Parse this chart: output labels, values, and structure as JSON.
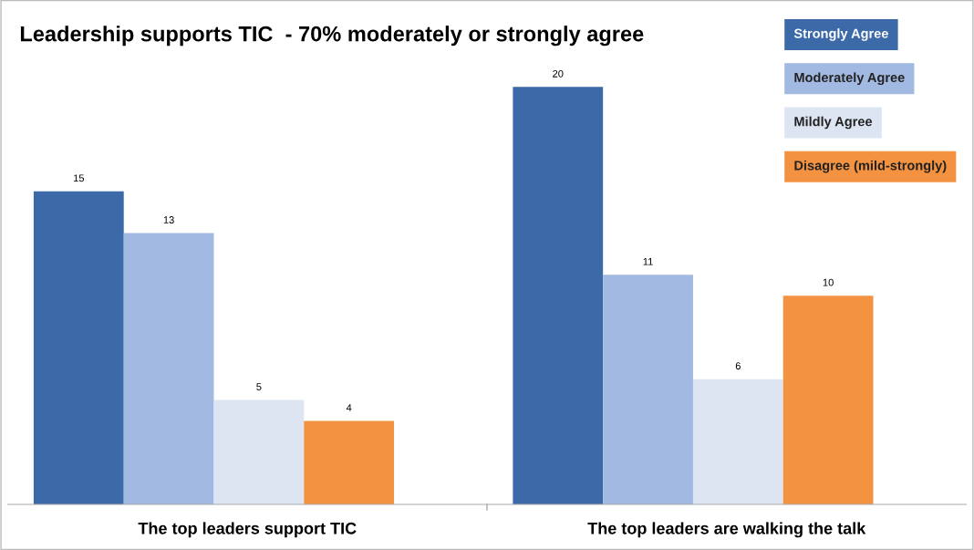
{
  "chart_data": {
    "type": "bar",
    "title": "Leadership supports TIC  - 70% moderately or strongly agree",
    "categories": [
      "The top leaders support TIC",
      "The top leaders are walking the talk"
    ],
    "series": [
      {
        "name": "Strongly Agree",
        "color": "#3c6aa8",
        "values": [
          15,
          20
        ]
      },
      {
        "name": "Moderately Agree",
        "color": "#a2b9e2",
        "values": [
          13,
          11
        ]
      },
      {
        "name": "Mildly Agree",
        "color": "#dde5f3",
        "values": [
          5,
          6
        ]
      },
      {
        "name": "Disagree (mild-strongly)",
        "color": "#f39240",
        "values": [
          4,
          10
        ]
      }
    ],
    "data_labels": true,
    "legend": "top right",
    "grid": false
  }
}
